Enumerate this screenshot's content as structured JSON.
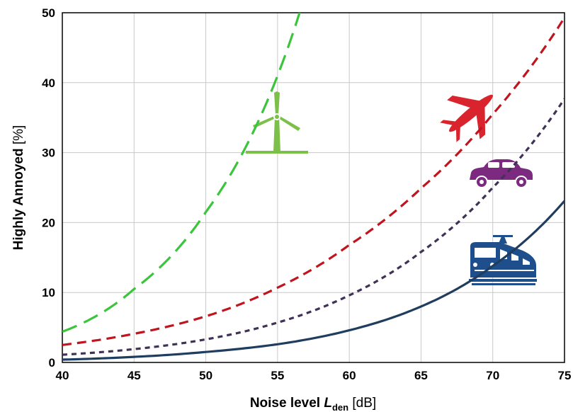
{
  "chart_data": {
    "type": "line",
    "xlabel": {
      "main": "Noise level ",
      "symbol": "L",
      "subscript": "den",
      "unit": " [dB]"
    },
    "ylabel": {
      "main": "Highly Annoyed ",
      "unit": "[%]"
    },
    "xlim": [
      40,
      75
    ],
    "ylim": [
      0,
      50
    ],
    "x_ticks": [
      "40",
      "45",
      "50",
      "55",
      "60",
      "65",
      "70",
      "75"
    ],
    "y_ticks": [
      "0",
      "10",
      "20",
      "30",
      "40",
      "50"
    ],
    "grid": true,
    "x": [
      40,
      45,
      50,
      55,
      60,
      65,
      70,
      75
    ],
    "series": [
      {
        "icon": "wind-turbine-icon",
        "color": "#3cc43c",
        "dash": "long-dash",
        "values": [
          4.4,
          10.5,
          21.5,
          41.0,
          null,
          null,
          null,
          null
        ]
      },
      {
        "icon": "airplane-icon",
        "color": "#c0141e",
        "dash": "dash",
        "values": [
          2.5,
          4.1,
          6.6,
          10.7,
          16.8,
          24.9,
          35.5,
          49.3
        ]
      },
      {
        "icon": "car-icon",
        "color": "#3f3256",
        "dash": "short-dash",
        "values": [
          1.1,
          1.9,
          3.3,
          5.7,
          9.6,
          15.8,
          25.0,
          37.7
        ]
      },
      {
        "icon": "train-icon",
        "color": "#1f3d5e",
        "dash": "solid",
        "values": [
          0.4,
          0.8,
          1.5,
          2.6,
          4.6,
          8.0,
          13.8,
          23.1
        ]
      }
    ],
    "icon_colors": {
      "wind-turbine-icon": "#7cc04a",
      "airplane-icon": "#d9232d",
      "car-icon": "#7b2a80",
      "train-icon": "#1f4e8c"
    }
  }
}
